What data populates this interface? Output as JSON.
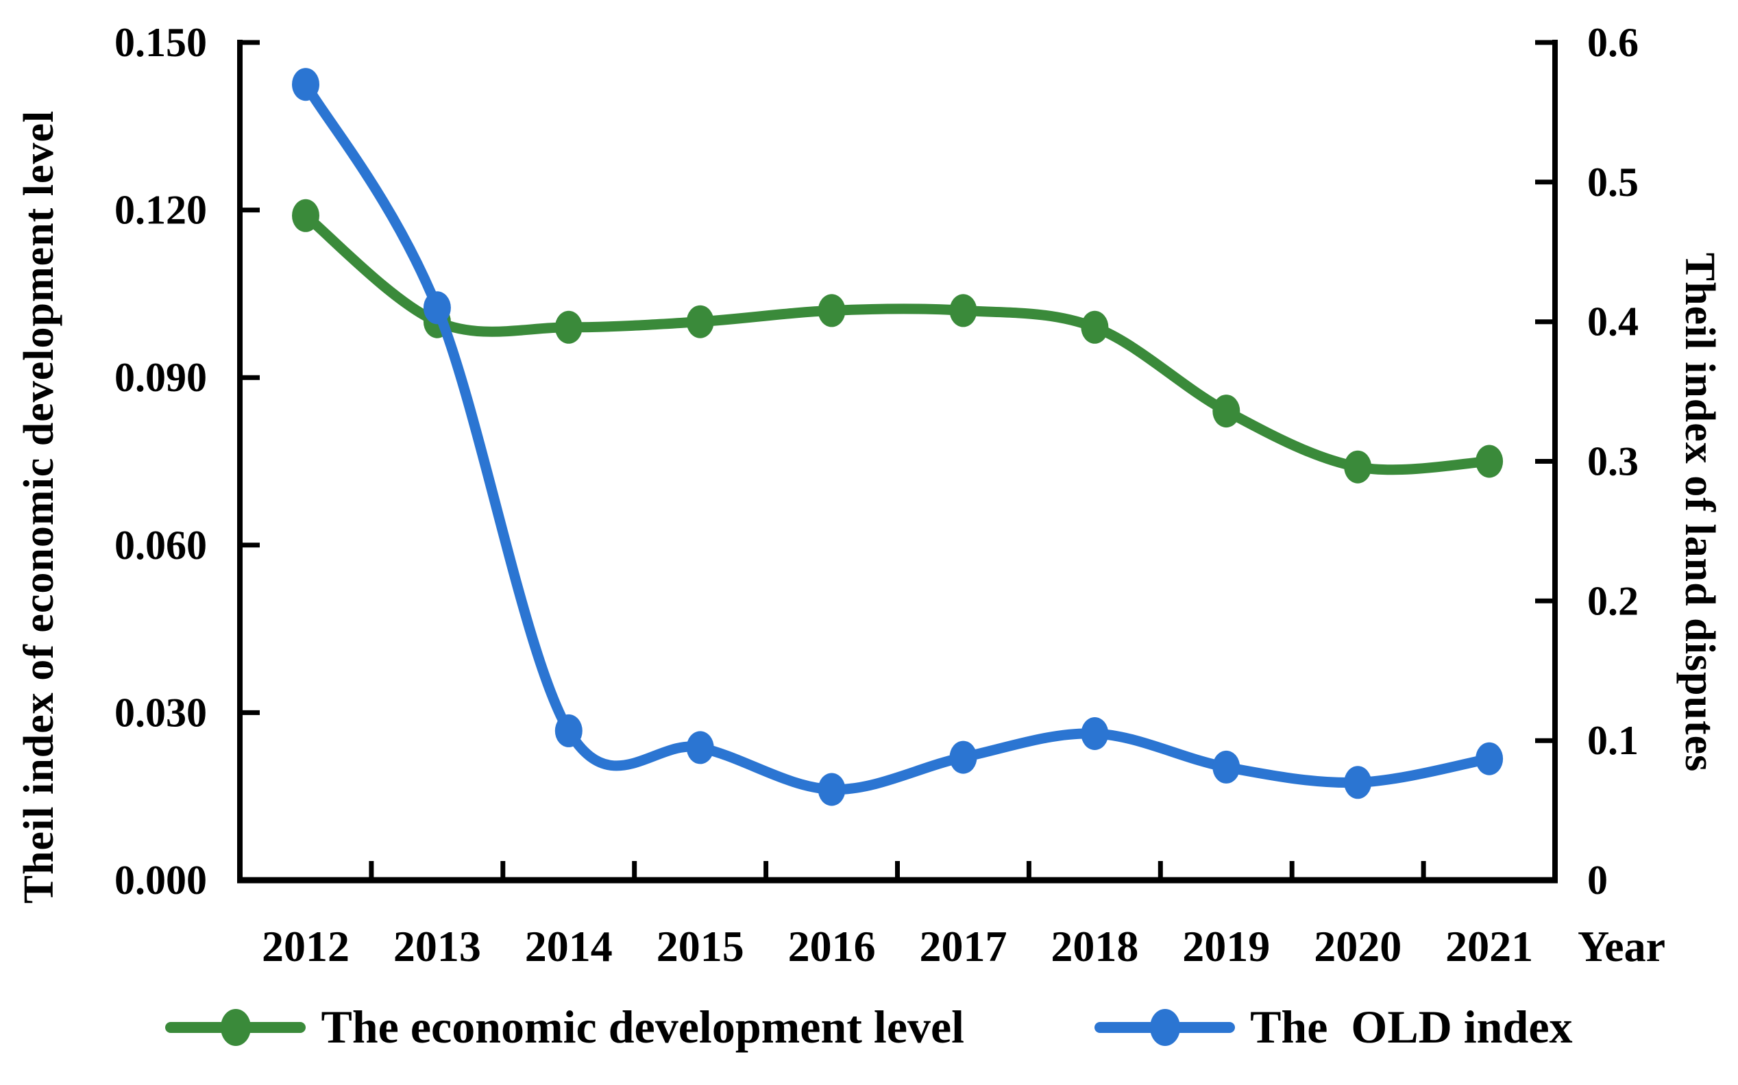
{
  "chart_data": {
    "type": "line",
    "title": "",
    "x_axis": {
      "label": "Year",
      "categories": [
        "2012",
        "2013",
        "2014",
        "2015",
        "2016",
        "2017",
        "2018",
        "2019",
        "2020",
        "2021"
      ]
    },
    "left_axis": {
      "label": "Theil index of economic development level",
      "min": 0,
      "max": 0.15,
      "ticks": [
        {
          "label": "0.150",
          "value": 0.15
        },
        {
          "label": "0.120",
          "value": 0.12
        },
        {
          "label": "0.090",
          "value": 0.09
        },
        {
          "label": "0.060",
          "value": 0.06
        },
        {
          "label": "0.030",
          "value": 0.03
        },
        {
          "label": "0.000",
          "value": 0.0
        }
      ]
    },
    "right_axis": {
      "label": "Theil index of land disputes",
      "min": 0,
      "max": 0.6,
      "ticks": [
        {
          "label": "0.6",
          "value": 0.6
        },
        {
          "label": "0.5",
          "value": 0.5
        },
        {
          "label": "0.4",
          "value": 0.4
        },
        {
          "label": "0.3",
          "value": 0.3
        },
        {
          "label": "0.2",
          "value": 0.2
        },
        {
          "label": "0.1",
          "value": 0.1
        },
        {
          "label": "0",
          "value": 0.0
        }
      ]
    },
    "series": [
      {
        "name": "The economic development level",
        "axis": "left",
        "color": "#3a8a3a",
        "marker": "circle",
        "values": [
          0.119,
          0.1,
          0.099,
          0.1,
          0.102,
          0.102,
          0.099,
          0.084,
          0.074,
          0.075
        ]
      },
      {
        "name": "The  OLD index",
        "axis": "right",
        "color": "#2b75d2",
        "marker": "circle",
        "values": [
          0.57,
          0.41,
          0.107,
          0.095,
          0.065,
          0.088,
          0.105,
          0.081,
          0.07,
          0.087
        ]
      }
    ],
    "legend": {
      "position": "bottom",
      "items": [
        "The economic development level",
        "The  OLD index"
      ]
    },
    "grid": "off"
  }
}
